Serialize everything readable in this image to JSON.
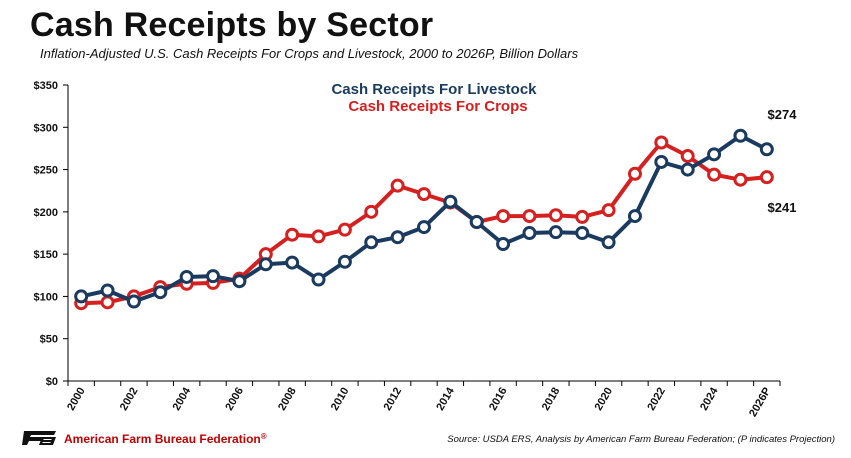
{
  "header": {
    "title": "Cash Receipts by Sector",
    "subtitle": "Inflation-Adjusted U.S. Cash Receipts For Crops and Livestock, 2000 to 2026P, Billion Dollars"
  },
  "footer": {
    "organization": "American Farm Bureau Federation",
    "registered_mark": "®",
    "source": "Source: USDA ERS, Analysis by American Farm Bureau Federation; (P indicates Projection)"
  },
  "colors": {
    "livestock": "#1a3a5f",
    "crops": "#d62020",
    "axis": "#000000",
    "logo": "#111111"
  },
  "chart_data": {
    "type": "line",
    "title": "Cash Receipts by Sector",
    "xlabel": "",
    "ylabel": "",
    "ylim": [
      0,
      350
    ],
    "yticks": [
      0,
      50,
      100,
      150,
      200,
      250,
      300,
      350
    ],
    "ytick_labels": [
      "$0",
      "$50",
      "$100",
      "$150",
      "$200",
      "$250",
      "$300",
      "$350"
    ],
    "x": [
      "2000",
      "2001",
      "2002",
      "2003",
      "2004",
      "2005",
      "2006",
      "2007",
      "2008",
      "2009",
      "2010",
      "2011",
      "2012",
      "2013",
      "2014",
      "2015",
      "2016",
      "2017",
      "2018",
      "2019",
      "2020",
      "2021",
      "2022",
      "2023",
      "2024",
      "2025",
      "2026P"
    ],
    "xtick_labels": [
      "2000",
      "2002",
      "2004",
      "2006",
      "2008",
      "2010",
      "2012",
      "2014",
      "2016",
      "2018",
      "2020",
      "2022",
      "2024",
      "2026P"
    ],
    "grid": false,
    "legend_position": "top-center",
    "series": [
      {
        "name": "Cash Receipts For Livestock",
        "color": "#1a3a5f",
        "values": [
          100,
          107,
          94,
          105,
          123,
          124,
          118,
          138,
          140,
          120,
          141,
          164,
          170,
          182,
          212,
          188,
          162,
          175,
          176,
          175,
          164,
          195,
          259,
          250,
          268,
          290,
          274
        ],
        "end_label": "$274"
      },
      {
        "name": "Cash Receipts For Crops",
        "color": "#d62020",
        "values": [
          92,
          93,
          100,
          111,
          115,
          116,
          121,
          150,
          173,
          171,
          179,
          200,
          231,
          221,
          211,
          188,
          195,
          195,
          196,
          194,
          202,
          245,
          282,
          266,
          244,
          238,
          241
        ],
        "end_label": "$241"
      }
    ]
  }
}
